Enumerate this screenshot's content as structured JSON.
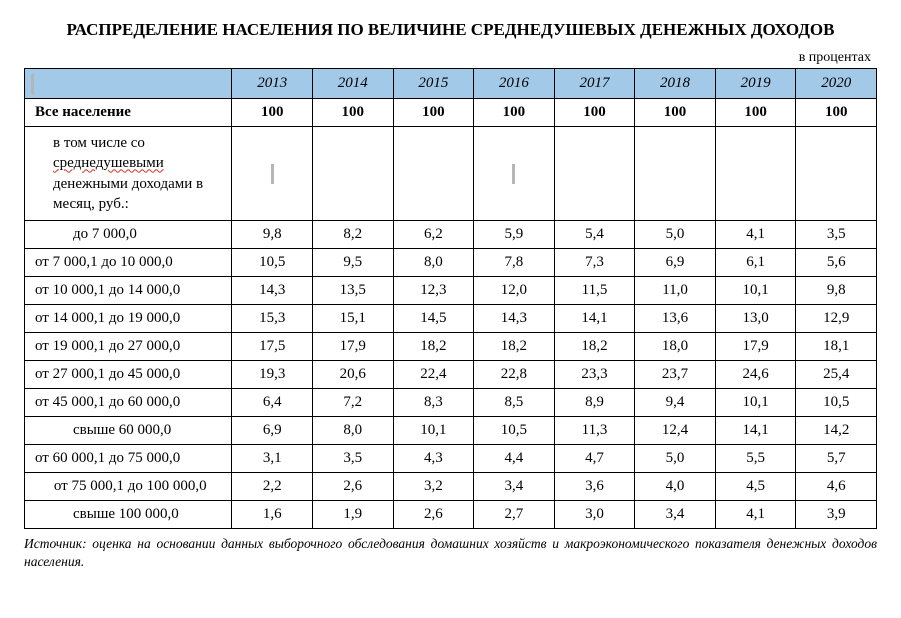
{
  "title": "РАСПРЕДЕЛЕНИЕ НАСЕЛЕНИЯ ПО ВЕЛИЧИНЕ СРЕДНЕДУШЕВЫХ ДЕНЕЖНЫХ ДОХОДОВ",
  "subtitle": "в процентах",
  "years": [
    "2013",
    "2014",
    "2015",
    "2016",
    "2017",
    "2018",
    "2019",
    "2020"
  ],
  "total_row": {
    "label": "Все население",
    "values": [
      "100",
      "100",
      "100",
      "100",
      "100",
      "100",
      "100",
      "100"
    ]
  },
  "subheader_parts": {
    "p1": "в том числе со ",
    "p2_wavy": "среднедушевыми",
    "p3": " денежными доходами в месяц, руб.:"
  },
  "rows": [
    {
      "label": "до 7 000,0",
      "indent": true,
      "values": [
        "9,8",
        "8,2",
        "6,2",
        "5,9",
        "5,4",
        "5,0",
        "4,1",
        "3,5"
      ]
    },
    {
      "label": "от 7 000,1 до 10 000,0",
      "indent": false,
      "values": [
        "10,5",
        "9,5",
        "8,0",
        "7,8",
        "7,3",
        "6,9",
        "6,1",
        "5,6"
      ]
    },
    {
      "label": "от 10 000,1 до 14 000,0",
      "indent": false,
      "values": [
        "14,3",
        "13,5",
        "12,3",
        "12,0",
        "11,5",
        "11,0",
        "10,1",
        "9,8"
      ]
    },
    {
      "label": "от 14 000,1 до 19 000,0",
      "indent": false,
      "values": [
        "15,3",
        "15,1",
        "14,5",
        "14,3",
        "14,1",
        "13,6",
        "13,0",
        "12,9"
      ]
    },
    {
      "label": "от 19 000,1 до 27 000,0",
      "indent": false,
      "values": [
        "17,5",
        "17,9",
        "18,2",
        "18,2",
        "18,2",
        "18,0",
        "17,9",
        "18,1"
      ]
    },
    {
      "label": "от 27 000,1 до 45 000,0",
      "indent": false,
      "values": [
        "19,3",
        "20,6",
        "22,4",
        "22,8",
        "23,3",
        "23,7",
        "24,6",
        "25,4"
      ]
    },
    {
      "label": "от 45 000,1 до 60 000,0",
      "indent": false,
      "values": [
        "6,4",
        "7,2",
        "8,3",
        "8,5",
        "8,9",
        "9,4",
        "10,1",
        "10,5"
      ]
    },
    {
      "label": "свыше 60 000,0",
      "indent": true,
      "values": [
        "6,9",
        "8,0",
        "10,1",
        "10,5",
        "11,3",
        "12,4",
        "14,1",
        "14,2"
      ]
    },
    {
      "label": "от 60 000,1 до 75 000,0",
      "indent": false,
      "values": [
        "3,1",
        "3,5",
        "4,3",
        "4,4",
        "4,7",
        "5,0",
        "5,5",
        "5,7"
      ]
    },
    {
      "label": "от 75 000,1 до 100 000,0",
      "indent": false,
      "center": true,
      "values": [
        "2,2",
        "2,6",
        "3,2",
        "3,4",
        "3,6",
        "4,0",
        "4,5",
        "4,6"
      ]
    },
    {
      "label": "свыше 100 000,0",
      "indent": true,
      "values": [
        "1,6",
        "1,9",
        "2,6",
        "2,7",
        "3,0",
        "3,4",
        "4,1",
        "3,9"
      ]
    }
  ],
  "source": "Источник: оценка на основании данных выборочного обследования домашних хозяйств и макроэкономического показателя денежных доходов населения.",
  "colors": {
    "header_bg": "#a3c9e8",
    "border": "#000000",
    "text": "#000000",
    "cursor": "#b5b5b5",
    "wavy": "#d93025",
    "background": "#ffffff"
  }
}
